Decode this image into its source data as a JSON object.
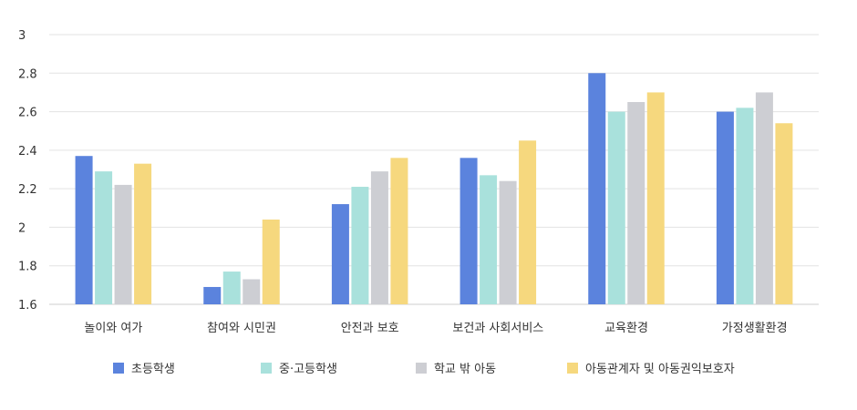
{
  "chart_data": {
    "type": "bar",
    "categories": [
      "놀이와 여가",
      "참여와 시민권",
      "안전과 보호",
      "보건과 사회서비스",
      "교육환경",
      "가정생활환경"
    ],
    "series": [
      {
        "name": "초등학생",
        "color": "#5b83dd",
        "values": [
          2.37,
          1.69,
          2.12,
          2.36,
          2.8,
          2.6
        ]
      },
      {
        "name": "중·고등학생",
        "color": "#a9e1dc",
        "values": [
          2.29,
          1.77,
          2.21,
          2.27,
          2.6,
          2.62
        ]
      },
      {
        "name": "학교 밖 아동",
        "color": "#cdced3",
        "values": [
          2.22,
          1.73,
          2.29,
          2.24,
          2.65,
          2.7
        ]
      },
      {
        "name": "아동관계자 및 아동권익보호자",
        "color": "#f6d87e",
        "values": [
          2.33,
          2.04,
          2.36,
          2.45,
          2.7,
          2.54
        ]
      }
    ],
    "y_ticks": [
      "1.6",
      "1.8",
      "2",
      "2.2",
      "2.4",
      "2.6",
      "2.8",
      "3"
    ],
    "ylim": [
      1.6,
      3
    ],
    "grid": true,
    "legend": "bottom"
  }
}
